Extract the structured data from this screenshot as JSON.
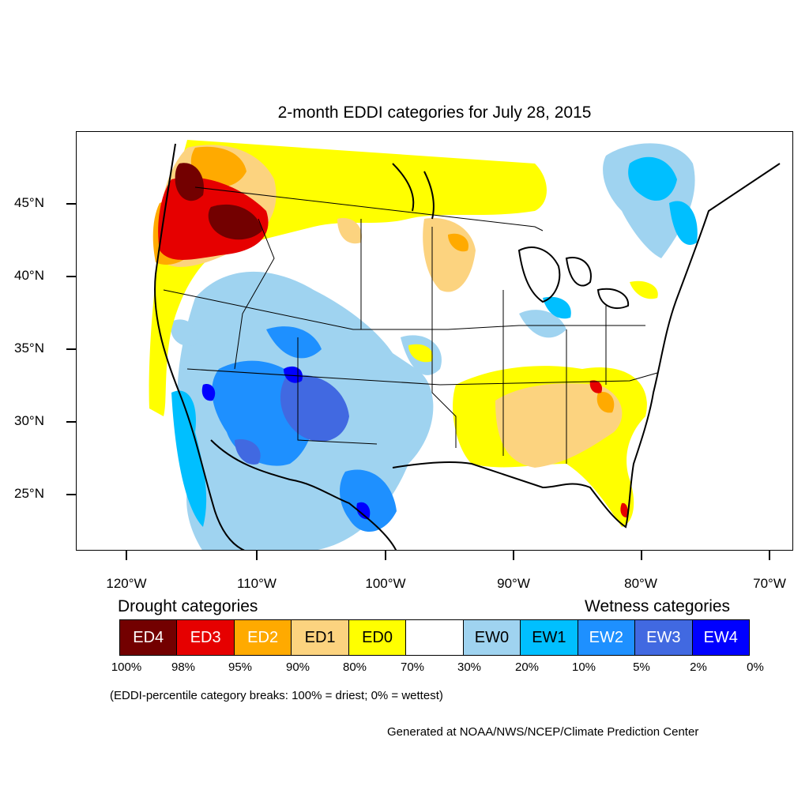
{
  "map": {
    "title": "2-month EDDI categories for July 28, 2015",
    "latitude_labels": [
      "45°N",
      "40°N",
      "35°N",
      "30°N",
      "25°N"
    ],
    "longitude_labels": [
      "120°W",
      "110°W",
      "100°W",
      "90°W",
      "80°W",
      "70°W"
    ]
  },
  "legend": {
    "drought_heading": "Drought categories",
    "wetness_heading": "Wetness categories",
    "categories": [
      {
        "label": "ED4",
        "color": "#730000",
        "text_color": "#ffffff"
      },
      {
        "label": "ED3",
        "color": "#e60000",
        "text_color": "#ffffff"
      },
      {
        "label": "ED2",
        "color": "#ffaa00",
        "text_color": "#ffffff"
      },
      {
        "label": "ED1",
        "color": "#fcd37f",
        "text_color": "#000000"
      },
      {
        "label": "ED0",
        "color": "#ffff00",
        "text_color": "#000000"
      },
      {
        "label": "",
        "color": "#ffffff",
        "text_color": "#000000"
      },
      {
        "label": "EW0",
        "color": "#9fd3f0",
        "text_color": "#000000"
      },
      {
        "label": "EW1",
        "color": "#00bfff",
        "text_color": "#000000"
      },
      {
        "label": "EW2",
        "color": "#1e90ff",
        "text_color": "#ffffff"
      },
      {
        "label": "EW3",
        "color": "#4169e1",
        "text_color": "#ffffff"
      },
      {
        "label": "EW4",
        "color": "#0000ff",
        "text_color": "#ffffff"
      }
    ],
    "breaks": [
      "100%",
      "98%",
      "95%",
      "90%",
      "80%",
      "70%",
      "30%",
      "20%",
      "10%",
      "5%",
      "2%",
      "0%"
    ],
    "note": "(EDDI-percentile category breaks: 100% = driest; 0% = wettest)"
  },
  "credit": "Generated at NOAA/NWS/NCEP/Climate Prediction Center"
}
